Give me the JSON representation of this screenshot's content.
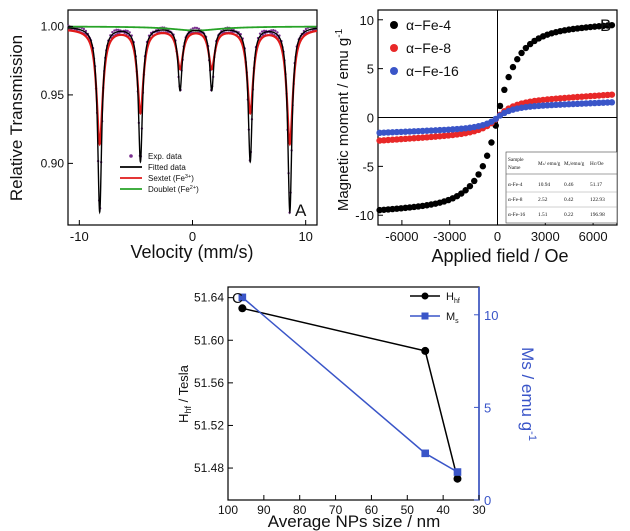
{
  "chart_data": [
    {
      "panel": "A",
      "type": "line",
      "xlabel": "Velocity (mm/s)",
      "ylabel": "Relative Transmission",
      "xlim": [
        -11,
        11
      ],
      "ylim": [
        0.855,
        1.012
      ],
      "xticks": [
        "-10",
        "0",
        "10"
      ],
      "yticks": [
        "0.90",
        "0.95",
        "1.00"
      ],
      "xtick_values": [
        -10,
        0,
        10
      ],
      "ytick_values": [
        0.9,
        0.95,
        1.0
      ],
      "legend": [
        "Exp. data",
        "Fitted data",
        "Sextet (Fe³⁺)",
        "Doublet (Fe²⁺)"
      ],
      "legend_position": "bottom-center",
      "baseline": 1.0,
      "sextet_lines": [
        {
          "position": -8.2,
          "depth": 0.135
        },
        {
          "position": -4.6,
          "depth": 0.098
        },
        {
          "position": -1.1,
          "depth": 0.046
        },
        {
          "position": 1.7,
          "depth": 0.046
        },
        {
          "position": 5.1,
          "depth": 0.098
        },
        {
          "position": 8.6,
          "depth": 0.135
        }
      ],
      "doublet": {
        "center": 0.3,
        "depth": 0.003
      },
      "colors": {
        "exp": "#7a2f8f",
        "fitted": "#000000",
        "sextet": "#e01a1a",
        "doublet": "#27a327"
      }
    },
    {
      "panel": "B",
      "type": "scatter",
      "xlabel": "Applied field / Oe",
      "ylabel": "Magnetic moment / emu g",
      "xlim": [
        -7500,
        7500
      ],
      "ylim": [
        -11,
        11
      ],
      "xticks": [
        "-6000",
        "-3000",
        "0",
        "3000",
        "6000"
      ],
      "yticks": [
        "-10",
        "-5",
        "0",
        "5",
        "10"
      ],
      "xtick_values": [
        -6000,
        -3000,
        0,
        3000,
        6000
      ],
      "ytick_values": [
        -10,
        -5,
        0,
        5,
        10
      ],
      "legend_position": "top-left",
      "series": [
        {
          "name": "α−Fe-4",
          "color": "#000000",
          "Ms": 10.94,
          "Mr": 0.46,
          "Hc": 51.17
        },
        {
          "name": "α−Fe-8",
          "color": "#e82828",
          "Ms": 2.52,
          "Mr": 0.42,
          "Hc": 122.93
        },
        {
          "name": "α−Fe-16",
          "color": "#3a55c8",
          "Ms": 1.51,
          "Mr": 0.22,
          "Hc": 196.98
        }
      ],
      "inset_table": {
        "headers": [
          "Sample Name",
          "Mₛ/ emu/g",
          "Mᵣ/emu/g",
          "Hc/Oe"
        ],
        "rows": [
          [
            "α-Fe-4",
            "10.94",
            "0.46",
            "51.17"
          ],
          [
            "α-Fe-8",
            "2.52",
            "0.42",
            "122.93"
          ],
          [
            "α-Fe-16",
            "1.51",
            "0.22",
            "196.98"
          ]
        ]
      }
    },
    {
      "panel": "C",
      "type": "line",
      "xlabel": "Average NPs size / nm",
      "ylabel_left": "Hhf / Tesla",
      "ylabel_right": "Ms / emu g",
      "xlim": [
        100,
        30
      ],
      "ylim_left": [
        51.45,
        51.65
      ],
      "ylim_right": [
        0,
        11.5
      ],
      "xticks": [
        "100",
        "90",
        "80",
        "70",
        "60",
        "50",
        "40",
        "30"
      ],
      "xtick_values": [
        100,
        90,
        80,
        70,
        60,
        50,
        40,
        30
      ],
      "yticks_left": [
        "51.48",
        "51.52",
        "51.56",
        "51.60",
        "51.64"
      ],
      "yticks_left_values": [
        51.48,
        51.52,
        51.56,
        51.6,
        51.64
      ],
      "yticks_right": [
        "0",
        "5",
        "10"
      ],
      "yticks_right_values": [
        0,
        5,
        10
      ],
      "legend_position": "top-right",
      "series": [
        {
          "name": "Hhf",
          "axis": "left",
          "color": "#000000",
          "marker": "circle",
          "x": [
            96,
            45,
            36
          ],
          "y": [
            51.63,
            51.59,
            51.47
          ]
        },
        {
          "name": "Ms",
          "axis": "right",
          "color": "#3a55c8",
          "marker": "square",
          "x": [
            96,
            45,
            36
          ],
          "y": [
            10.94,
            2.52,
            1.51
          ]
        }
      ]
    }
  ],
  "labels": {
    "panel_a": "A",
    "panel_b": "B",
    "panel_c": "C",
    "b_ylabel_exp": "-1",
    "c_ylabel_left_sub": "hf",
    "c_ylabel_left_rest": " / Tesla",
    "c_ylabel_left_main": "H",
    "c_ylabel_right_exp": "-1",
    "c_legend_h_main": "H",
    "c_legend_h_sub": "hf",
    "c_legend_m_main": "M",
    "c_legend_m_sub": "s",
    "a_leg_sextet_main": "Sextet (Fe",
    "a_leg_sextet_sup": "3+",
    "a_leg_doublet_main": "Doublet (Fe",
    "a_leg_doublet_sup": "2+",
    "a_leg_close": ")"
  }
}
